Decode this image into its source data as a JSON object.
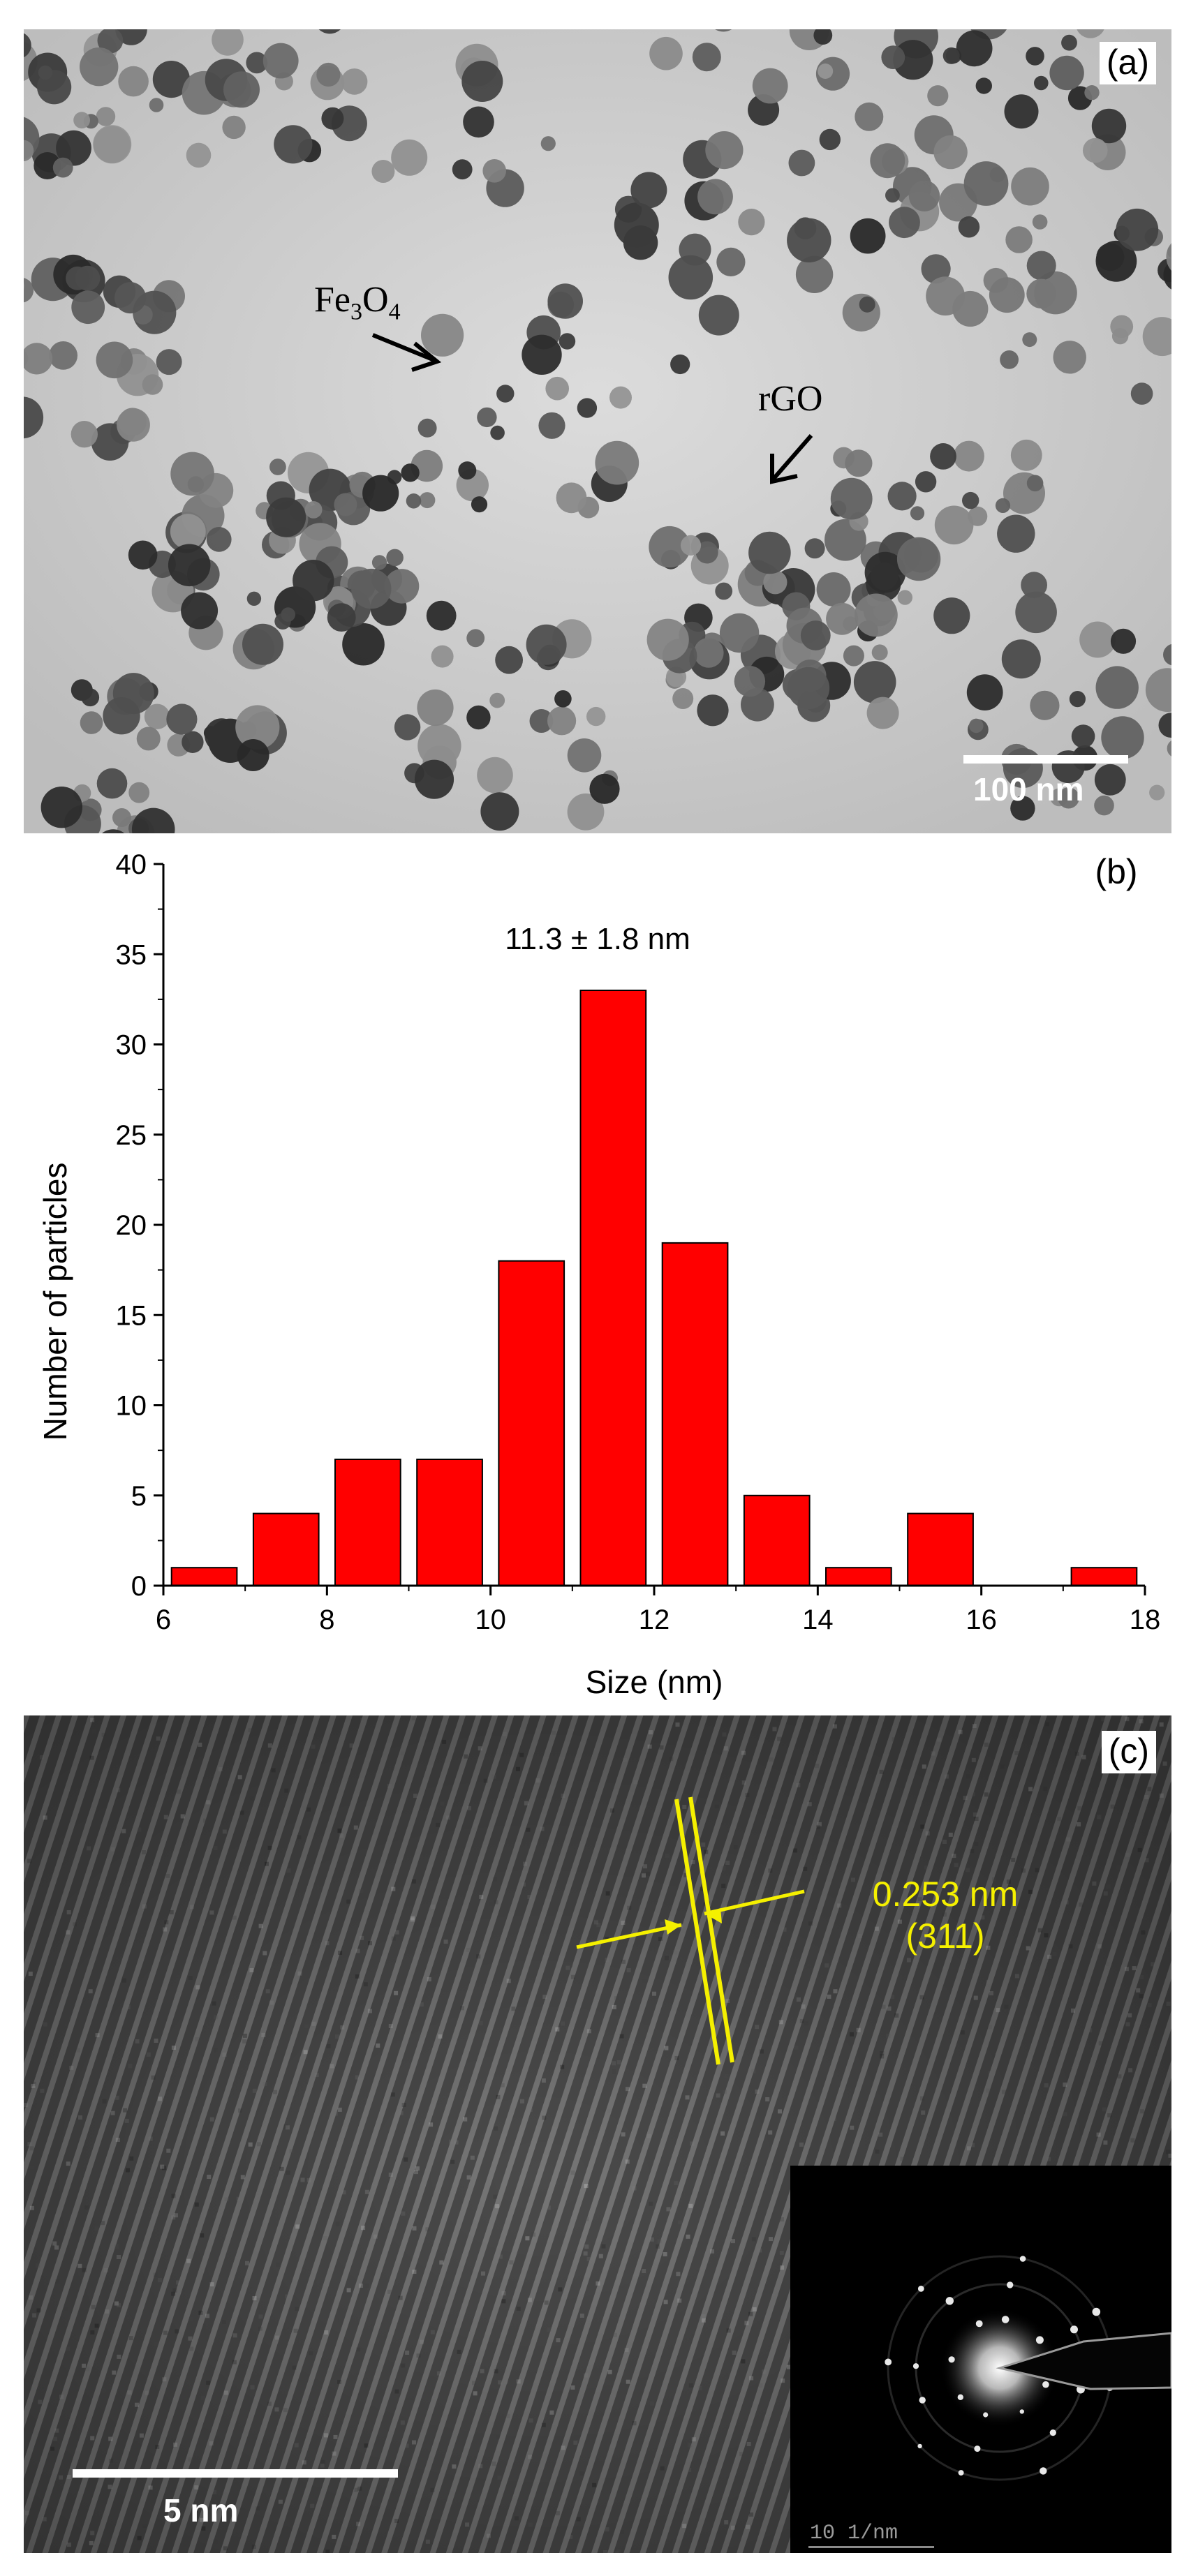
{
  "panels": {
    "a": {
      "label": "(a)",
      "annotations": {
        "particle": "Fe3O4",
        "sheet": "rGO"
      },
      "scale_bar": "100 nm"
    },
    "b": {
      "label": "(b)"
    },
    "c": {
      "label": "(c)",
      "lattice_spacing": "0.253 nm",
      "plane": "(311)",
      "scale_bar": "5 nm",
      "inset_scale_bar": "10 1/nm"
    }
  },
  "chart_data": {
    "type": "bar",
    "title": "",
    "annotation": "11.3 ± 1.8 nm",
    "xlabel": "Size (nm)",
    "ylabel": "Number of particles",
    "xlim": [
      6,
      18
    ],
    "ylim": [
      0,
      40
    ],
    "x_ticks": [
      "6",
      "8",
      "10",
      "12",
      "14",
      "16",
      "18"
    ],
    "y_ticks": [
      "0",
      "5",
      "10",
      "15",
      "20",
      "25",
      "30",
      "35",
      "40"
    ],
    "bin_width": 0.8,
    "x": [
      6.5,
      7.5,
      8.5,
      9.5,
      10.5,
      11.5,
      12.5,
      13.5,
      14.5,
      15.5,
      17.5
    ],
    "values": [
      1,
      4,
      7,
      7,
      18,
      33,
      19,
      5,
      1,
      4,
      1
    ],
    "colors": {
      "bar": "#ff0000",
      "edge": "#000000"
    }
  }
}
